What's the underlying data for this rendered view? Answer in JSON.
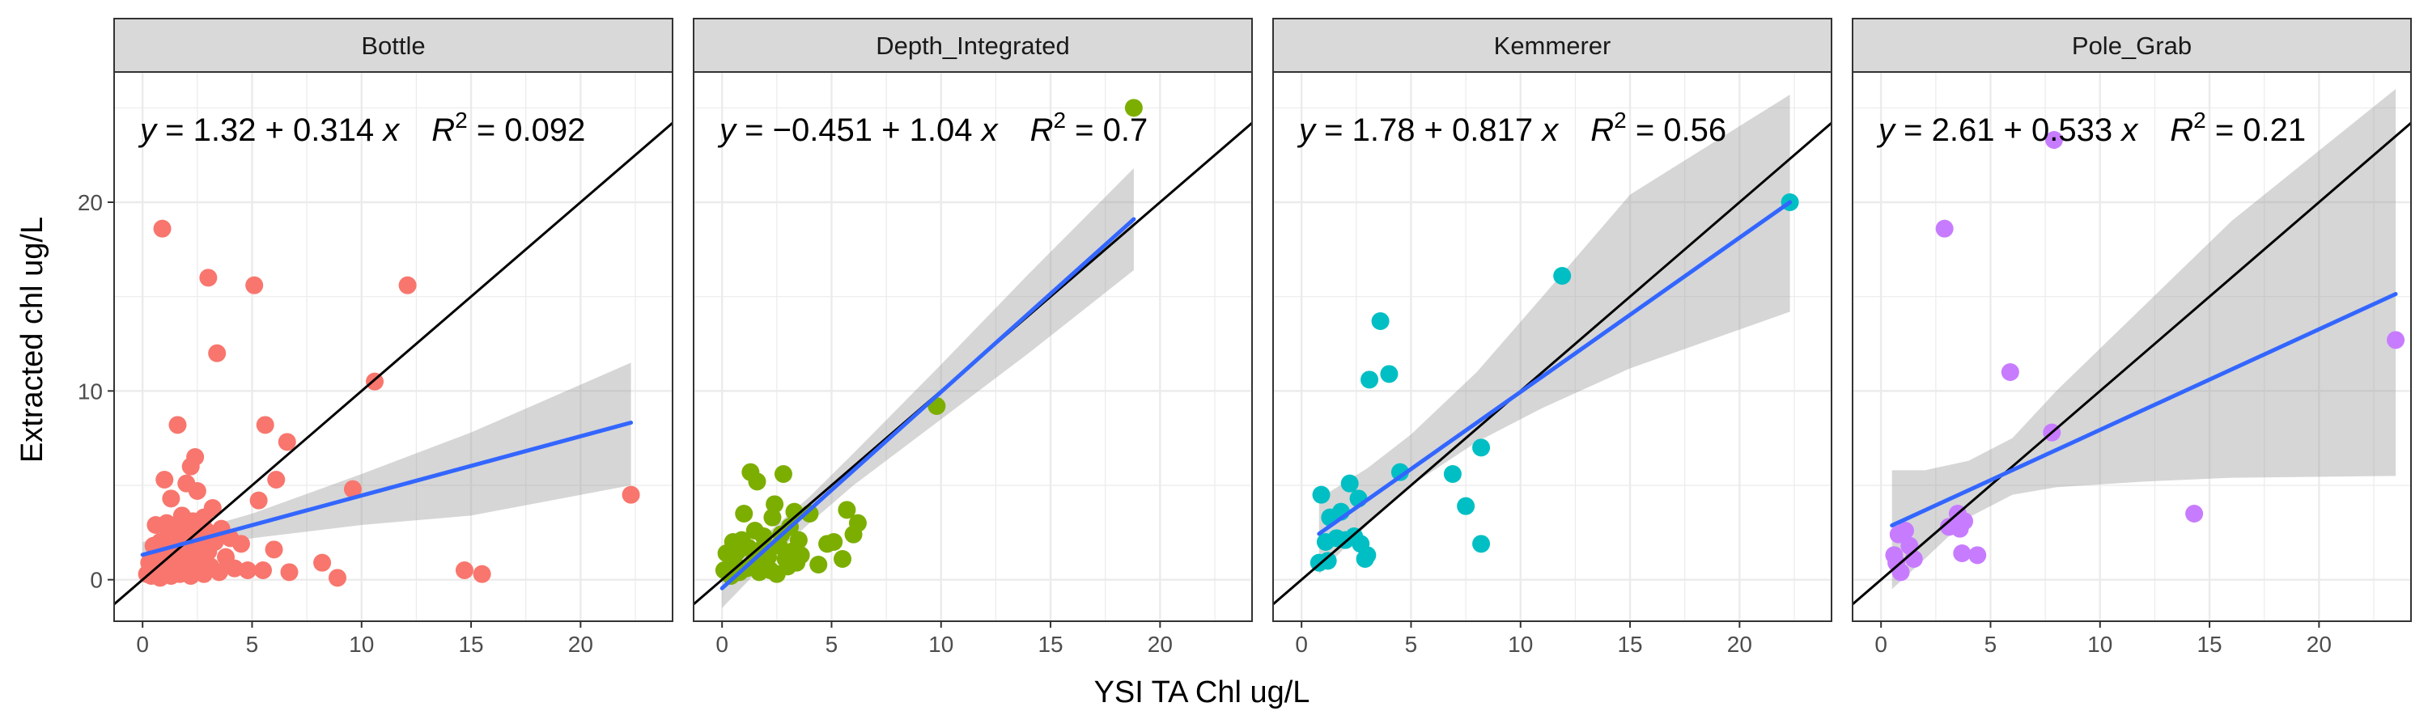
{
  "chart_data": {
    "type": "scatter",
    "xlabel": "YSI TA Chl ug/L",
    "ylabel": "Extracted chl ug/L",
    "xlim": [
      -1.3,
      24.2
    ],
    "ylim": [
      -2.2,
      26.9
    ],
    "x_ticks": [
      0,
      5,
      10,
      15,
      20
    ],
    "y_ticks": [
      0,
      10,
      20
    ],
    "grid": true,
    "reference_line": "y = x",
    "colors": {
      "Bottle": "#F8766D",
      "Depth_Integrated": "#7CAE00",
      "Kemmerer": "#00BFC4",
      "Pole_Grab": "#C77CFF",
      "fit_line": "#3366FF",
      "ribbon": "#999999",
      "strip_fill": "#D9D9D9",
      "grid": "#EBEBEB"
    },
    "panels": [
      {
        "label": "Bottle",
        "equation": {
          "y": "y",
          "eq": " = 1.32 + 0.314 ",
          "x": "x",
          "r": "R",
          "sup": "2",
          "r2": " = 0.092"
        },
        "fit": {
          "intercept": 1.32,
          "slope": 0.314,
          "x_range": [
            0,
            22.3
          ]
        },
        "ribbon": [
          [
            0,
            0.6,
            2.0
          ],
          [
            2,
            1.5,
            2.5
          ],
          [
            5,
            2.2,
            3.5
          ],
          [
            10,
            2.9,
            5.6
          ],
          [
            15,
            3.4,
            7.8
          ],
          [
            22.3,
            5.0,
            11.5
          ]
        ],
        "points": [
          [
            0.2,
            0.3
          ],
          [
            0.3,
            0.9
          ],
          [
            0.4,
            0.2
          ],
          [
            0.5,
            1.8
          ],
          [
            0.6,
            0.5
          ],
          [
            0.6,
            2.9
          ],
          [
            0.7,
            1.2
          ],
          [
            0.8,
            0.1
          ],
          [
            0.8,
            2.0
          ],
          [
            0.9,
            18.6
          ],
          [
            0.9,
            0.7
          ],
          [
            1.0,
            5.3
          ],
          [
            1.0,
            1.5
          ],
          [
            1.1,
            0.4
          ],
          [
            1.1,
            3.0
          ],
          [
            1.2,
            0.9
          ],
          [
            1.2,
            2.4
          ],
          [
            1.3,
            0.2
          ],
          [
            1.3,
            4.3
          ],
          [
            1.4,
            1.6
          ],
          [
            1.5,
            0.6
          ],
          [
            1.5,
            2.9
          ],
          [
            1.6,
            8.2
          ],
          [
            1.6,
            1.1
          ],
          [
            1.7,
            0.3
          ],
          [
            1.7,
            2.2
          ],
          [
            1.8,
            3.4
          ],
          [
            1.9,
            0.8
          ],
          [
            1.9,
            1.9
          ],
          [
            2.0,
            5.1
          ],
          [
            2.0,
            0.4
          ],
          [
            2.1,
            2.7
          ],
          [
            2.1,
            1.3
          ],
          [
            2.2,
            6.0
          ],
          [
            2.2,
            0.2
          ],
          [
            2.3,
            3.1
          ],
          [
            2.3,
            0.9
          ],
          [
            2.4,
            1.8
          ],
          [
            2.4,
            6.5
          ],
          [
            2.5,
            4.7
          ],
          [
            2.5,
            0.5
          ],
          [
            2.6,
            2.2
          ],
          [
            2.7,
            1.1
          ],
          [
            2.8,
            3.3
          ],
          [
            2.8,
            0.3
          ],
          [
            2.9,
            2.6
          ],
          [
            3.0,
            16.0
          ],
          [
            3.0,
            1.5
          ],
          [
            3.1,
            0.7
          ],
          [
            3.2,
            3.8
          ],
          [
            3.3,
            2.0
          ],
          [
            3.4,
            12.0
          ],
          [
            3.5,
            0.4
          ],
          [
            3.6,
            2.7
          ],
          [
            3.8,
            1.2
          ],
          [
            4.0,
            2.2
          ],
          [
            4.2,
            0.6
          ],
          [
            4.5,
            1.9
          ],
          [
            4.8,
            0.5
          ],
          [
            5.1,
            15.6
          ],
          [
            5.3,
            4.2
          ],
          [
            5.5,
            0.5
          ],
          [
            5.6,
            8.2
          ],
          [
            6.0,
            1.6
          ],
          [
            6.1,
            5.3
          ],
          [
            6.6,
            7.3
          ],
          [
            6.7,
            0.4
          ],
          [
            8.2,
            0.9
          ],
          [
            8.9,
            0.1
          ],
          [
            9.6,
            4.8
          ],
          [
            10.6,
            10.5
          ],
          [
            12.1,
            15.6
          ],
          [
            14.7,
            0.5
          ],
          [
            15.5,
            0.3
          ],
          [
            22.3,
            4.5
          ]
        ]
      },
      {
        "label": "Depth_Integrated",
        "equation": {
          "y": "y",
          "eq": " = −0.451 + 1.04 ",
          "x": "x",
          "r": "R",
          "sup": "2",
          "r2": " = 0.7"
        },
        "fit": {
          "intercept": -0.451,
          "slope": 1.04,
          "x_range": [
            0,
            18.8
          ]
        },
        "ribbon": [
          [
            0,
            -1.5,
            0.6
          ],
          [
            2,
            0.9,
            2.4
          ],
          [
            4,
            3.0,
            4.4
          ],
          [
            6,
            5.0,
            6.7
          ],
          [
            10,
            8.5,
            11.4
          ],
          [
            14,
            12.0,
            16.2
          ],
          [
            18.8,
            16.4,
            21.8
          ]
        ],
        "points": [
          [
            0.1,
            0.5
          ],
          [
            0.2,
            1.4
          ],
          [
            0.4,
            0.2
          ],
          [
            0.5,
            2.0
          ],
          [
            0.6,
            0.8
          ],
          [
            0.7,
            1.5
          ],
          [
            0.8,
            0.4
          ],
          [
            0.9,
            2.1
          ],
          [
            1.0,
            3.5
          ],
          [
            1.1,
            0.6
          ],
          [
            1.2,
            1.7
          ],
          [
            1.3,
            5.7
          ],
          [
            1.4,
            0.9
          ],
          [
            1.5,
            2.6
          ],
          [
            1.6,
            5.2
          ],
          [
            1.7,
            0.4
          ],
          [
            1.8,
            1.6
          ],
          [
            1.9,
            2.3
          ],
          [
            2.0,
            0.9
          ],
          [
            2.1,
            1.2
          ],
          [
            2.2,
            0.5
          ],
          [
            2.3,
            3.3
          ],
          [
            2.4,
            4.0
          ],
          [
            2.5,
            0.3
          ],
          [
            2.6,
            1.8
          ],
          [
            2.7,
            2.4
          ],
          [
            2.8,
            5.6
          ],
          [
            2.9,
            1.1
          ],
          [
            3.0,
            0.7
          ],
          [
            3.1,
            2.8
          ],
          [
            3.2,
            1.5
          ],
          [
            3.3,
            3.6
          ],
          [
            3.4,
            0.9
          ],
          [
            3.5,
            2.1
          ],
          [
            3.6,
            1.3
          ],
          [
            4.0,
            3.5
          ],
          [
            4.4,
            0.8
          ],
          [
            4.8,
            1.9
          ],
          [
            5.1,
            2.0
          ],
          [
            5.5,
            1.1
          ],
          [
            5.7,
            3.7
          ],
          [
            6.0,
            2.4
          ],
          [
            6.2,
            3.0
          ],
          [
            9.8,
            9.2
          ],
          [
            18.8,
            25.0
          ]
        ]
      },
      {
        "label": "Kemmerer",
        "equation": {
          "y": "y",
          "eq": " = 1.78 + 0.817 ",
          "x": "x",
          "r": "R",
          "sup": "2",
          "r2": " = 0.56"
        },
        "fit": {
          "intercept": 1.78,
          "slope": 0.817,
          "x_range": [
            0.8,
            22.3
          ]
        },
        "ribbon": [
          [
            0.8,
            0.3,
            4.3
          ],
          [
            3,
            2.9,
            5.9
          ],
          [
            5,
            5.0,
            7.7
          ],
          [
            8,
            7.3,
            11.0
          ],
          [
            11,
            9.1,
            15.0
          ],
          [
            15,
            11.2,
            20.4
          ],
          [
            22.3,
            14.2,
            25.7
          ]
        ],
        "points": [
          [
            0.8,
            0.9
          ],
          [
            0.9,
            4.5
          ],
          [
            1.1,
            2.0
          ],
          [
            1.2,
            1.0
          ],
          [
            1.3,
            3.3
          ],
          [
            1.6,
            2.2
          ],
          [
            1.8,
            3.6
          ],
          [
            2.0,
            2.1
          ],
          [
            2.2,
            5.1
          ],
          [
            2.4,
            2.3
          ],
          [
            2.6,
            4.3
          ],
          [
            2.7,
            1.9
          ],
          [
            2.9,
            1.1
          ],
          [
            3.0,
            1.3
          ],
          [
            3.1,
            10.6
          ],
          [
            3.6,
            13.7
          ],
          [
            4.0,
            10.9
          ],
          [
            4.5,
            5.7
          ],
          [
            6.9,
            5.6
          ],
          [
            7.5,
            3.9
          ],
          [
            8.2,
            7.0
          ],
          [
            8.2,
            1.9
          ],
          [
            11.9,
            16.1
          ],
          [
            22.3,
            20.0
          ]
        ]
      },
      {
        "label": "Pole_Grab",
        "equation": {
          "y": "y",
          "eq": " = 2.61 + 0.533 ",
          "x": "x",
          "r": "R",
          "sup": "2",
          "r2": " = 0.21"
        },
        "fit": {
          "intercept": 2.61,
          "slope": 0.533,
          "x_range": [
            0.5,
            23.5
          ]
        },
        "ribbon": [
          [
            0.5,
            -0.5,
            5.8
          ],
          [
            2,
            1.1,
            5.8
          ],
          [
            4,
            3.3,
            6.3
          ],
          [
            6,
            4.5,
            7.5
          ],
          [
            8,
            4.9,
            10.0
          ],
          [
            12,
            5.2,
            14.5
          ],
          [
            16,
            5.4,
            19.0
          ],
          [
            23.5,
            5.5,
            26.0
          ]
        ],
        "points": [
          [
            0.6,
            1.3
          ],
          [
            0.7,
            0.9
          ],
          [
            0.8,
            2.4
          ],
          [
            0.9,
            0.4
          ],
          [
            1.1,
            2.6
          ],
          [
            1.3,
            1.8
          ],
          [
            1.5,
            1.1
          ],
          [
            2.9,
            18.6
          ],
          [
            3.1,
            2.8
          ],
          [
            3.5,
            3.5
          ],
          [
            3.6,
            2.7
          ],
          [
            3.7,
            1.4
          ],
          [
            3.8,
            3.1
          ],
          [
            4.4,
            1.3
          ],
          [
            5.9,
            11.0
          ],
          [
            7.8,
            7.8
          ],
          [
            7.9,
            23.3
          ],
          [
            14.3,
            3.5
          ],
          [
            23.5,
            12.7
          ]
        ]
      }
    ]
  }
}
